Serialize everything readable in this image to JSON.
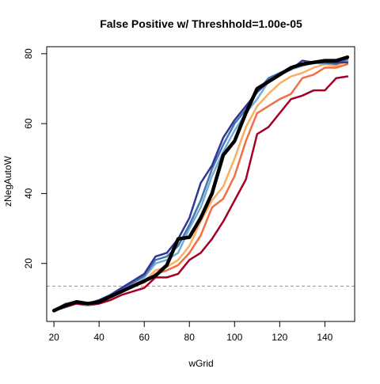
{
  "chart_data": {
    "type": "line",
    "title": "False Positive w/ Threshhold=1.00e-05",
    "xlabel": "wGrid",
    "ylabel": "zNegAutoW",
    "xlim": [
      16.8,
      153.2
    ],
    "ylim": [
      3.4,
      82.0
    ],
    "xticks": [
      "20",
      "40",
      "60",
      "80",
      "100",
      "120",
      "140"
    ],
    "yticks": [
      "20",
      "40",
      "60",
      "80"
    ],
    "x": [
      20,
      25,
      30,
      35,
      40,
      45,
      50,
      55,
      60,
      65,
      70,
      75,
      80,
      85,
      90,
      95,
      100,
      105,
      110,
      115,
      120,
      125,
      130,
      135,
      140,
      145,
      150
    ],
    "threshold": {
      "value": 13.5,
      "color": "#ff6666",
      "style": "dashed"
    },
    "legend": "none",
    "grid": false,
    "series": [
      {
        "color": "#a50026",
        "width": 2.5,
        "values": [
          6.5,
          7.5,
          8.5,
          8.0,
          8.5,
          9.5,
          11.0,
          12.0,
          13.0,
          16.0,
          16.0,
          17.0,
          21.0,
          23.0,
          27.0,
          32.0,
          38.0,
          44.0,
          57.0,
          59.0,
          63.0,
          67.0,
          68.0,
          69.5,
          69.5,
          73.0,
          73.5
        ]
      },
      {
        "color": "#f46d43",
        "width": 2.5,
        "values": [
          6.5,
          8.0,
          9.0,
          8.5,
          9.0,
          10.5,
          12.0,
          13.5,
          14.5,
          17.0,
          18.0,
          19.5,
          23.0,
          28.0,
          36.0,
          38.5,
          45.0,
          55.0,
          63.0,
          65.0,
          67.0,
          68.5,
          73.0,
          74.0,
          76.0,
          76.0,
          77.0
        ]
      },
      {
        "color": "#fdae61",
        "width": 2.5,
        "values": [
          6.5,
          8.0,
          9.0,
          8.5,
          9.5,
          11.0,
          12.5,
          14.0,
          15.0,
          18.0,
          19.0,
          21.0,
          25.0,
          32.0,
          38.0,
          42.0,
          50.0,
          59.0,
          65.0,
          68.5,
          71.5,
          73.5,
          74.5,
          76.0,
          77.0,
          76.5,
          78.0
        ]
      },
      {
        "color": "#74add1",
        "width": 2.5,
        "values": [
          6.5,
          8.5,
          9.0,
          8.0,
          9.0,
          11.0,
          12.5,
          14.5,
          16.0,
          20.0,
          21.0,
          23.0,
          30.0,
          36.0,
          45.0,
          52.0,
          58.0,
          63.0,
          67.0,
          72.0,
          74.0,
          75.5,
          76.5,
          77.5,
          77.0,
          77.5,
          78.0
        ]
      },
      {
        "color": "#4575b4",
        "width": 2.5,
        "values": [
          6.5,
          8.0,
          9.0,
          8.5,
          9.0,
          11.0,
          12.5,
          14.5,
          16.5,
          21.0,
          22.0,
          25.0,
          31.0,
          38.0,
          47.0,
          54.0,
          60.0,
          64.0,
          69.0,
          73.0,
          74.5,
          76.0,
          77.0,
          77.5,
          77.5,
          77.0,
          78.5
        ]
      },
      {
        "color": "#313695",
        "width": 2.5,
        "values": [
          6.5,
          7.5,
          9.0,
          8.5,
          9.5,
          11.0,
          13.0,
          15.0,
          17.0,
          22.0,
          23.0,
          27.0,
          33.0,
          43.0,
          48.0,
          56.0,
          61.0,
          65.0,
          69.0,
          72.0,
          74.0,
          75.5,
          78.0,
          77.5,
          77.5,
          77.5,
          77.5
        ]
      },
      {
        "color": "#000000",
        "width": 4.5,
        "values": [
          6.5,
          8.0,
          9.0,
          8.5,
          9.0,
          10.5,
          12.0,
          13.5,
          15.0,
          16.5,
          19.5,
          27.0,
          27.5,
          33.0,
          40.0,
          51.0,
          55.0,
          63.0,
          70.0,
          72.0,
          74.0,
          76.0,
          77.0,
          77.5,
          78.0,
          78.0,
          79.0
        ]
      }
    ]
  }
}
